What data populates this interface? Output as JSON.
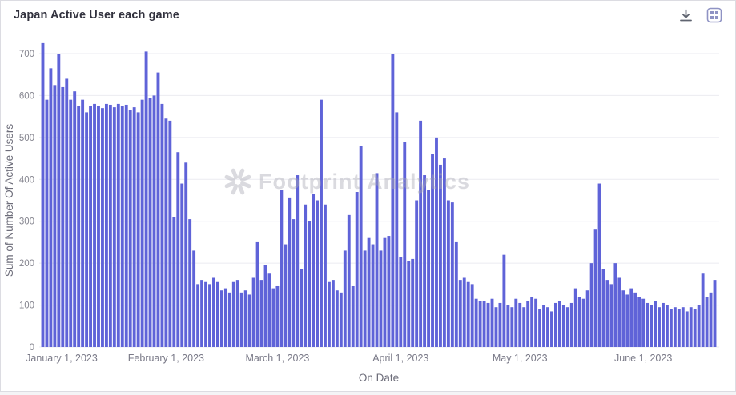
{
  "header": {
    "title": "Japan Active User each game",
    "download_tooltip": "Download",
    "app_tooltip": "App"
  },
  "watermark": {
    "text": "Footprint Analytics"
  },
  "chart_data": {
    "type": "bar",
    "title": "Japan Active User each game",
    "xlabel": "On Date",
    "ylabel": "Sum of Number Of Active Users",
    "ylim": [
      0,
      700
    ],
    "y_ticks": [
      0,
      100,
      200,
      300,
      400,
      500,
      600,
      700
    ],
    "grid": true,
    "bar_color": "#5f63d8",
    "grid_color": "#ebebf1",
    "axis_text_color": "#85858f",
    "axis_title_color": "#6d6d7a",
    "x_tick_indices": [
      0,
      31,
      59,
      90,
      120,
      151
    ],
    "x_tick_labels": [
      "January 1, 2023",
      "February 1, 2023",
      "March 1, 2023",
      "April 1, 2023",
      "May 1, 2023",
      "June 1, 2023"
    ],
    "values": [
      725,
      590,
      665,
      625,
      700,
      620,
      640,
      590,
      610,
      575,
      590,
      560,
      575,
      580,
      575,
      570,
      580,
      578,
      572,
      580,
      575,
      578,
      565,
      572,
      560,
      590,
      705,
      595,
      600,
      655,
      580,
      545,
      540,
      310,
      465,
      390,
      440,
      305,
      230,
      150,
      160,
      155,
      150,
      165,
      155,
      135,
      140,
      130,
      155,
      160,
      130,
      135,
      125,
      165,
      250,
      160,
      195,
      175,
      140,
      145,
      375,
      245,
      355,
      305,
      410,
      185,
      340,
      300,
      365,
      350,
      590,
      340,
      155,
      160,
      135,
      130,
      230,
      315,
      145,
      370,
      480,
      230,
      260,
      245,
      415,
      230,
      260,
      265,
      700,
      560,
      215,
      490,
      205,
      210,
      350,
      540,
      410,
      375,
      460,
      500,
      435,
      450,
      350,
      345,
      250,
      160,
      165,
      155,
      150,
      115,
      110,
      110,
      105,
      115,
      95,
      105,
      220,
      100,
      95,
      115,
      105,
      95,
      110,
      120,
      115,
      90,
      100,
      95,
      85,
      105,
      110,
      100,
      95,
      105,
      140,
      120,
      115,
      135,
      200,
      280,
      390,
      185,
      160,
      150,
      200,
      165,
      135,
      125,
      140,
      130,
      120,
      115,
      105,
      100,
      110,
      95,
      105,
      100,
      90,
      95,
      90,
      95,
      85,
      95,
      90,
      100,
      175,
      120,
      130,
      160
    ]
  }
}
